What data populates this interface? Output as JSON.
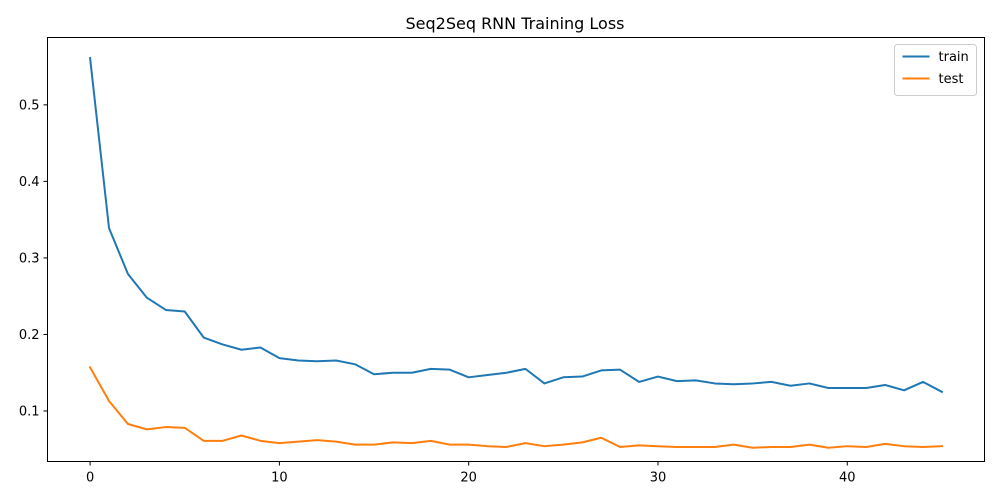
{
  "chart_data": {
    "type": "line",
    "title": "Seq2Seq RNN Training Loss",
    "xlabel": "",
    "ylabel": "",
    "xlim": [
      -2.25,
      47.25
    ],
    "ylim": [
      0.034,
      0.588
    ],
    "x_ticks": [
      0,
      10,
      20,
      30,
      40
    ],
    "y_ticks": [
      0.1,
      0.2,
      0.3,
      0.4,
      0.5
    ],
    "x_tick_labels": [
      "0",
      "10",
      "20",
      "30",
      "40"
    ],
    "y_tick_labels": [
      "0.1",
      "0.2",
      "0.3",
      "0.4",
      "0.5"
    ],
    "grid": false,
    "legend_position": "top-right",
    "x": [
      0,
      1,
      2,
      3,
      4,
      5,
      6,
      7,
      8,
      9,
      10,
      11,
      12,
      13,
      14,
      15,
      16,
      17,
      18,
      19,
      20,
      21,
      22,
      23,
      24,
      25,
      26,
      27,
      28,
      29,
      30,
      31,
      32,
      33,
      34,
      35,
      36,
      37,
      38,
      39,
      40,
      41,
      42,
      43,
      44,
      45
    ],
    "series": [
      {
        "name": "train",
        "color": "#1f77b4",
        "values": [
          0.561,
          0.339,
          0.279,
          0.248,
          0.232,
          0.23,
          0.196,
          0.187,
          0.18,
          0.183,
          0.169,
          0.166,
          0.165,
          0.166,
          0.161,
          0.148,
          0.15,
          0.15,
          0.155,
          0.154,
          0.144,
          0.147,
          0.15,
          0.155,
          0.136,
          0.144,
          0.145,
          0.153,
          0.154,
          0.138,
          0.145,
          0.139,
          0.14,
          0.136,
          0.135,
          0.136,
          0.138,
          0.133,
          0.136,
          0.13,
          0.13,
          0.13,
          0.134,
          0.127,
          0.138,
          0.125
        ]
      },
      {
        "name": "test",
        "color": "#ff7f0e",
        "values": [
          0.157,
          0.113,
          0.083,
          0.076,
          0.079,
          0.078,
          0.061,
          0.061,
          0.068,
          0.061,
          0.058,
          0.06,
          0.062,
          0.06,
          0.056,
          0.056,
          0.059,
          0.058,
          0.061,
          0.056,
          0.056,
          0.054,
          0.053,
          0.058,
          0.054,
          0.056,
          0.059,
          0.065,
          0.053,
          0.055,
          0.054,
          0.053,
          0.053,
          0.053,
          0.056,
          0.052,
          0.053,
          0.053,
          0.056,
          0.052,
          0.054,
          0.053,
          0.057,
          0.054,
          0.053,
          0.054
        ]
      }
    ]
  }
}
